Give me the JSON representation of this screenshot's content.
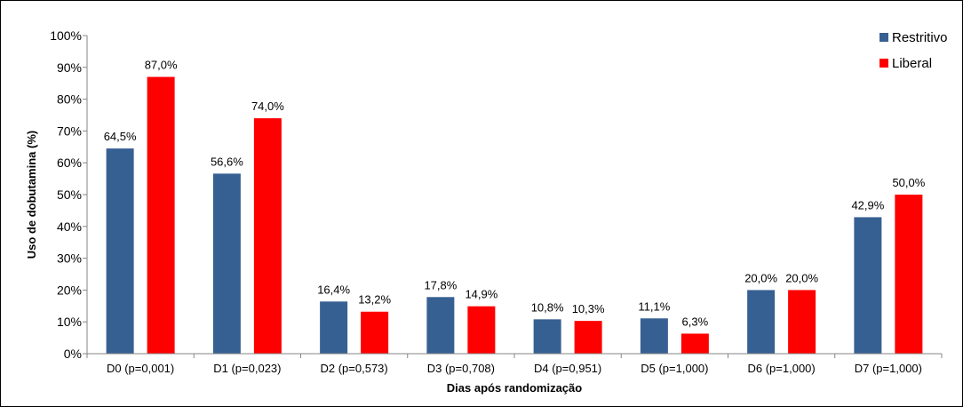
{
  "chart_data": {
    "type": "bar",
    "xlabel": "Dias após randomização",
    "ylabel": "Uso de dobutamina (%)",
    "ylim": [
      0,
      100
    ],
    "yticks": [
      "0%",
      "10%",
      "20%",
      "30%",
      "40%",
      "50%",
      "60%",
      "70%",
      "80%",
      "90%",
      "100%"
    ],
    "categories": [
      "D0 (p=0,001)",
      "D1 (p=0,023)",
      "D2 (p=0,573)",
      "D3 (p=0,708)",
      "D4 (p=0,951)",
      "D5 (p=1,000)",
      "D6 (p=1,000)",
      "D7 (p=1,000)"
    ],
    "series": [
      {
        "name": "Restritivo",
        "color": "#376092",
        "values": [
          64.5,
          56.6,
          16.4,
          17.8,
          10.8,
          11.1,
          20.0,
          42.9
        ],
        "labels": [
          "64,5%",
          "56,6%",
          "16,4%",
          "17,8%",
          "10,8%",
          "11,1%",
          "20,0%",
          "42,9%"
        ]
      },
      {
        "name": "Liberal",
        "color": "#ff0000",
        "values": [
          87.0,
          74.0,
          13.2,
          14.9,
          10.3,
          6.3,
          20.0,
          50.0
        ],
        "labels": [
          "87,0%",
          "74,0%",
          "13,2%",
          "14,9%",
          "10,3%",
          "6,3%",
          "20,0%",
          "50,0%"
        ]
      }
    ],
    "grid": false,
    "legend_position": "top-right"
  }
}
